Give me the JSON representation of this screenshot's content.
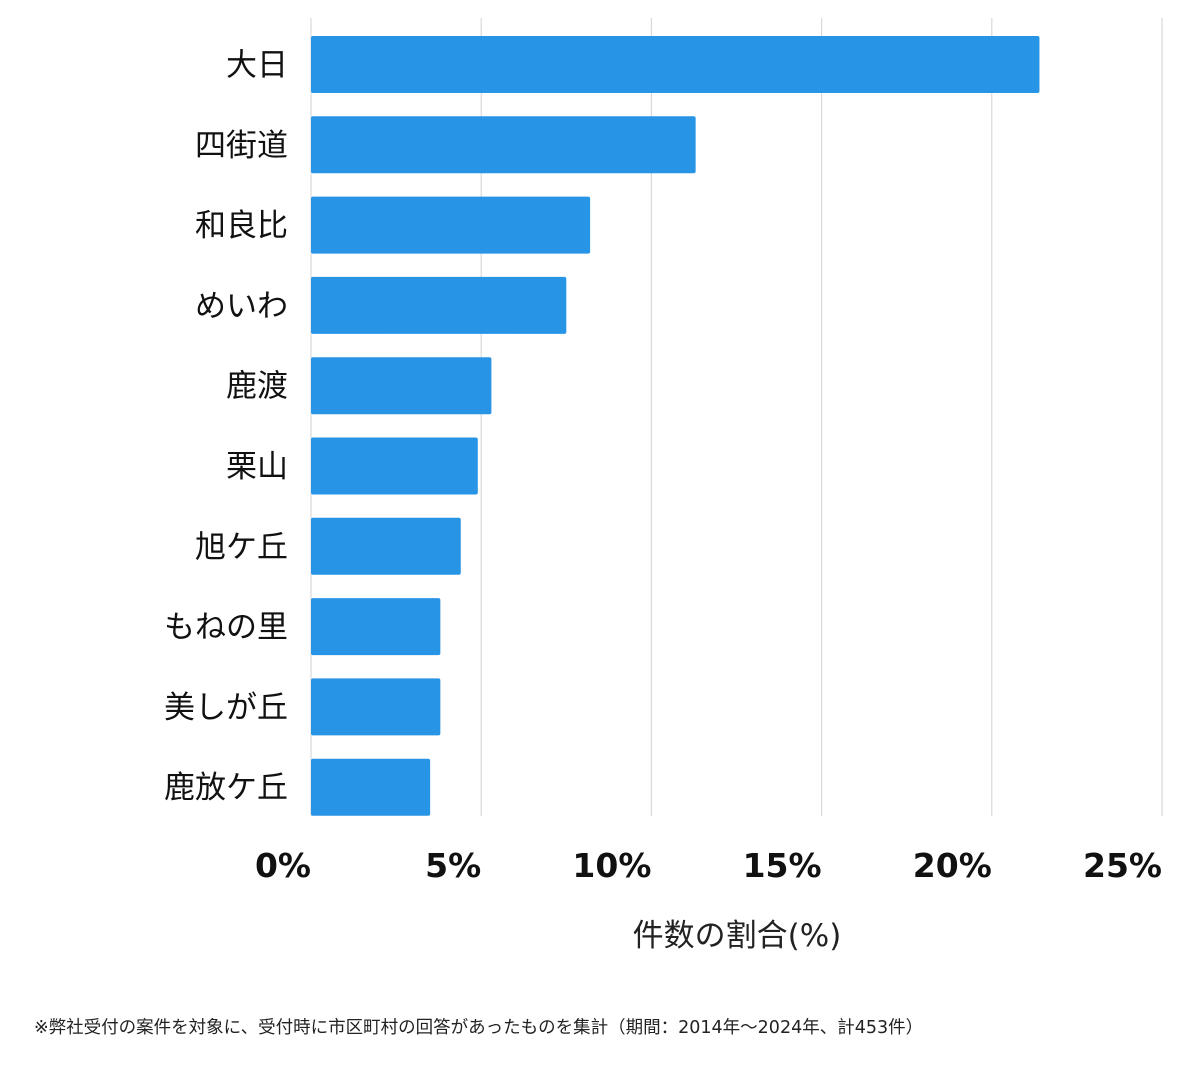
{
  "chart_data": {
    "type": "bar",
    "orientation": "horizontal",
    "categories": [
      "大日",
      "四街道",
      "和良比",
      "めいわ",
      "鹿渡",
      "栗山",
      "旭ケ丘",
      "もねの里",
      "美しが丘",
      "鹿放ケ丘"
    ],
    "values": [
      21.4,
      11.3,
      8.2,
      7.5,
      5.3,
      4.9,
      4.4,
      3.8,
      3.8,
      3.5
    ],
    "xlabel": "件数の割合(%)",
    "ylabel": "",
    "xlim": [
      0,
      25
    ],
    "ticks": [
      0,
      5,
      10,
      15,
      20,
      25
    ],
    "tick_labels": [
      "0%",
      "5%",
      "10%",
      "15%",
      "20%",
      "25%"
    ],
    "grid": "vertical",
    "bar_color": "#2894e6",
    "grid_color": "#d9d9d9"
  },
  "footnote": "※弊社受付の案件を対象に、受付時に市区町村の回答があったものを集計（期間：2014年～2024年、計453件）"
}
